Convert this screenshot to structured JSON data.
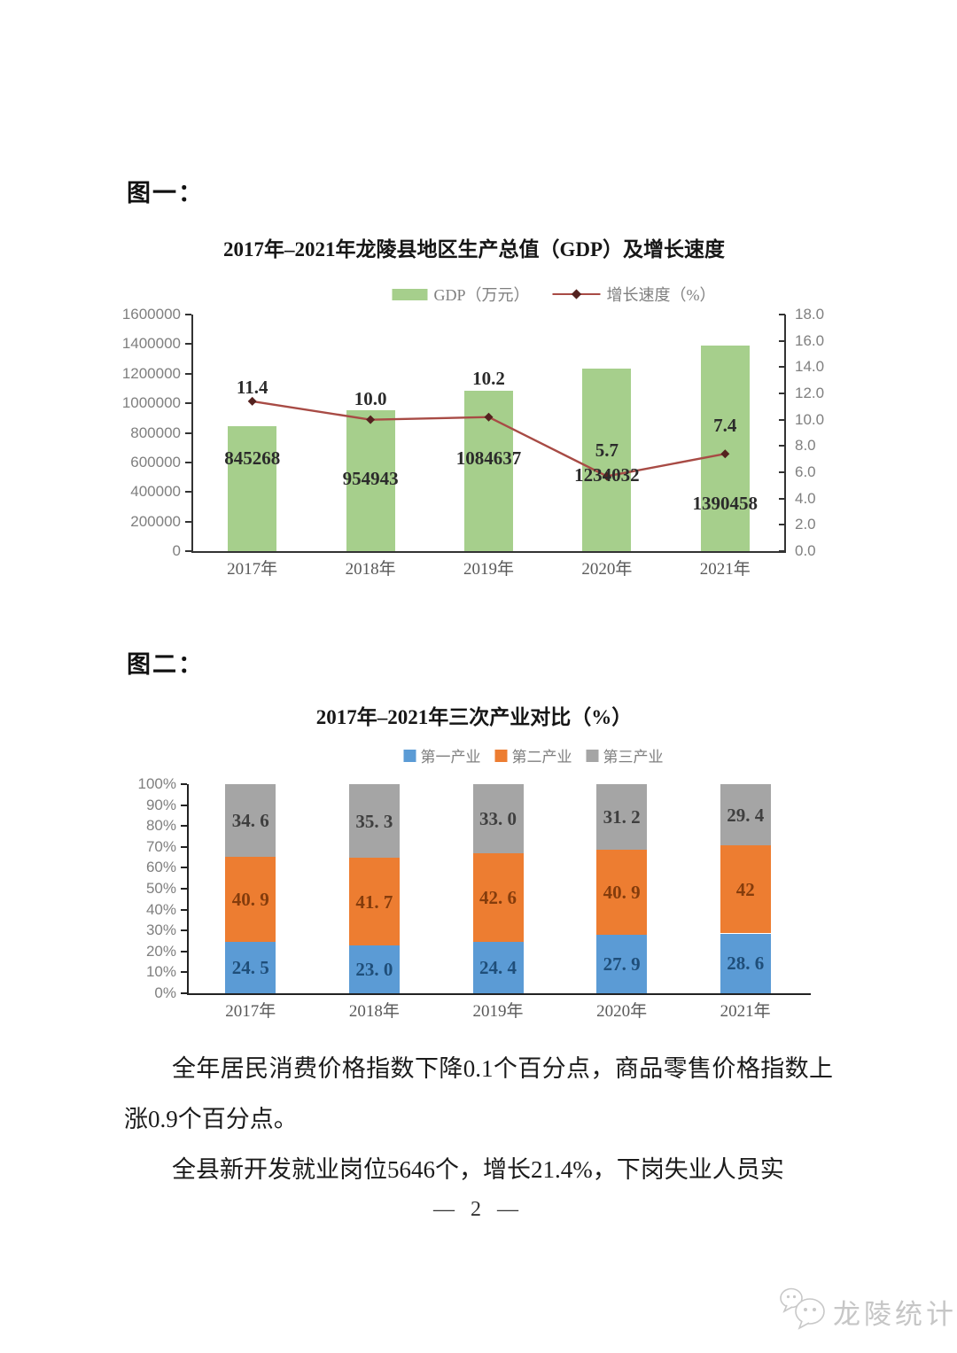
{
  "page": {
    "number_label": "— 2 —"
  },
  "figures": [
    {
      "label": "图一："
    },
    {
      "label": "图二："
    }
  ],
  "paragraphs": [
    "全年居民消费价格指数下降0.1个百分点，商品零售价格指数上涨0.9个百分点。",
    "全县新开发就业岗位5646个，增长21.4%，下岗失业人员实"
  ],
  "watermark": {
    "icon": "wechat-chat-bubbles-icon",
    "text": "龙陵统计"
  },
  "chart_data": [
    {
      "type": "bar",
      "subtype": "bar-line-combo",
      "title": "2017年–2021年龙陵县地区生产总值（GDP）及增长速度",
      "categories": [
        "2017年",
        "2018年",
        "2019年",
        "2020年",
        "2021年"
      ],
      "series": [
        {
          "name": "GDP（万元）",
          "type": "bar",
          "axis": "left",
          "color": "#a6cf8c",
          "values": [
            845268,
            954943,
            1084637,
            1234032,
            1390458
          ],
          "labels": [
            "845268",
            "954943",
            "1084637",
            "1234032",
            "1390458"
          ]
        },
        {
          "name": "增长速度（%）",
          "type": "line",
          "axis": "right",
          "color": "#a84b45",
          "marker_color": "#54221f",
          "values": [
            11.4,
            10.0,
            10.2,
            5.7,
            7.4
          ],
          "labels": [
            "11.4",
            "10.0",
            "10.2",
            "5.7",
            "7.4"
          ]
        }
      ],
      "left_axis": {
        "min": 0,
        "max": 1600000,
        "ticks_top_to_bottom": [
          "1600000",
          "1400000",
          "1200000",
          "1000000",
          "800000",
          "600000",
          "400000",
          "200000",
          "0"
        ]
      },
      "right_axis": {
        "min": 0,
        "max": 18,
        "ticks_top_to_bottom": [
          "18.0",
          "16.0",
          "14.0",
          "12.0",
          "10.0",
          "8.0",
          "6.0",
          "4.0",
          "2.0",
          "0.0"
        ]
      },
      "grid": false,
      "legend_position": "top"
    },
    {
      "type": "bar",
      "subtype": "stacked-bar-100",
      "title": "2017年–2021年三次产业对比（%）",
      "categories": [
        "2017年",
        "2018年",
        "2019年",
        "2020年",
        "2021年"
      ],
      "series": [
        {
          "name": "第一产业",
          "color": "#5b9bd5",
          "label_color": "#1f4e79",
          "values": [
            24.5,
            23.0,
            24.4,
            27.9,
            28.6
          ],
          "labels": [
            "24. 5",
            "23. 0",
            "24. 4",
            "27. 9",
            "28. 6"
          ]
        },
        {
          "name": "第二产业",
          "color": "#ed7d31",
          "label_color": "#843c0c",
          "values": [
            40.9,
            41.7,
            42.6,
            40.9,
            42
          ],
          "labels": [
            "40. 9",
            "41. 7",
            "42. 6",
            "40. 9",
            "42"
          ]
        },
        {
          "name": "第三产业",
          "color": "#a5a5a5",
          "label_color": "#3f3f3f",
          "values": [
            34.6,
            35.3,
            33.0,
            31.2,
            29.4
          ],
          "labels": [
            "34. 6",
            "35. 3",
            "33. 0",
            "31. 2",
            "29. 4"
          ]
        }
      ],
      "y_axis": {
        "min": 0,
        "max": 100,
        "ticks_top_to_bottom": [
          "100%",
          "90%",
          "80%",
          "70%",
          "60%",
          "50%",
          "40%",
          "30%",
          "20%",
          "10%",
          "0%"
        ]
      },
      "grid": false,
      "legend_position": "top"
    }
  ]
}
